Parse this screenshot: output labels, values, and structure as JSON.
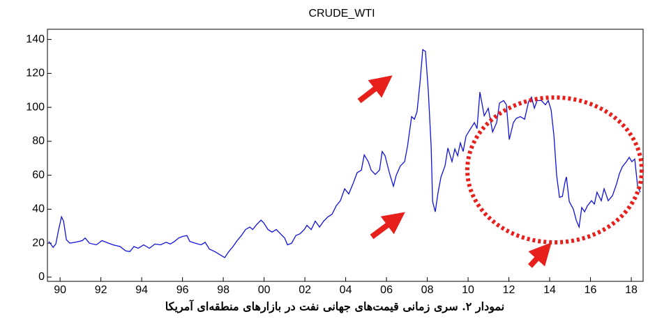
{
  "chart_data": {
    "type": "line",
    "title": "CRUDE_WTI",
    "caption": "نمودار ۲. سری زمانی قیمت‌های جهانی نفت در بازارهای منطقه‌ای آمریکا",
    "color": "#1010e0",
    "x": [
      1989.45,
      1989.66,
      1989.79,
      1989.93,
      1990.07,
      1990.17,
      1990.31,
      1990.48,
      1990.75,
      1991.09,
      1991.23,
      1991.44,
      1991.78,
      1992.05,
      1992.26,
      1992.6,
      1992.94,
      1993.21,
      1993.42,
      1993.62,
      1993.83,
      1994.1,
      1994.38,
      1994.65,
      1994.92,
      1995.2,
      1995.4,
      1995.61,
      1995.81,
      1996.02,
      1996.22,
      1996.36,
      1996.63,
      1996.91,
      1997.11,
      1997.32,
      1997.59,
      1997.86,
      1998.07,
      1998.27,
      1998.48,
      1998.68,
      1998.89,
      1999.09,
      1999.3,
      1999.44,
      1999.64,
      1999.85,
      1999.98,
      2000.19,
      2000.39,
      2000.6,
      2000.8,
      2001.01,
      2001.15,
      2001.35,
      2001.56,
      2001.76,
      2001.97,
      2002.1,
      2002.31,
      2002.51,
      2002.72,
      2002.92,
      2003.13,
      2003.33,
      2003.54,
      2003.74,
      2003.95,
      2004.15,
      2004.36,
      2004.56,
      2004.77,
      2004.91,
      2005.11,
      2005.25,
      2005.45,
      2005.66,
      2005.79,
      2005.93,
      2006.14,
      2006.34,
      2006.48,
      2006.68,
      2006.89,
      2007.03,
      2007.23,
      2007.37,
      2007.5,
      2007.64,
      2007.78,
      2007.91,
      2008.05,
      2008.19,
      2008.26,
      2008.39,
      2008.53,
      2008.67,
      2008.87,
      2009.01,
      2009.21,
      2009.35,
      2009.49,
      2009.62,
      2009.76,
      2009.9,
      2010.1,
      2010.31,
      2010.44,
      2010.58,
      2010.79,
      2010.99,
      2011.2,
      2011.4,
      2011.54,
      2011.74,
      2011.88,
      2012.02,
      2012.22,
      2012.36,
      2012.56,
      2012.77,
      2012.97,
      2013.11,
      2013.25,
      2013.38,
      2013.59,
      2013.79,
      2013.93,
      2014.07,
      2014.21,
      2014.34,
      2014.48,
      2014.62,
      2014.75,
      2014.82,
      2014.96,
      2015.16,
      2015.3,
      2015.44,
      2015.57,
      2015.71,
      2015.85,
      2016.05,
      2016.19,
      2016.32,
      2016.53,
      2016.67,
      2016.87,
      2017.08,
      2017.28,
      2017.42,
      2017.56,
      2017.76,
      2017.9,
      2018.03,
      2018.17,
      2018.31,
      2018.44
    ],
    "values": [
      21,
      17.5,
      19.5,
      28,
      35.5,
      33,
      22,
      20,
      20.5,
      21.5,
      23,
      20,
      19,
      21.5,
      20.5,
      19,
      18,
      15.5,
      15,
      18,
      17,
      19,
      17,
      19.5,
      19,
      20.5,
      19.5,
      21,
      23,
      24,
      24.5,
      21,
      20,
      19,
      20.5,
      16.5,
      15,
      13,
      11.5,
      15,
      18,
      21.5,
      24.5,
      28,
      29.5,
      28,
      31,
      33.5,
      32,
      28,
      26.5,
      28,
      25.5,
      23,
      19,
      20,
      24.5,
      25.5,
      28,
      30.5,
      28,
      33,
      29.5,
      33,
      35.5,
      37,
      42,
      45,
      52,
      49,
      55,
      61.5,
      63,
      72,
      68,
      63,
      60.5,
      63,
      74,
      71.5,
      61.5,
      53.5,
      60,
      65.5,
      68,
      77,
      94.5,
      93,
      97.5,
      114,
      134,
      133,
      110,
      77,
      44.5,
      38.5,
      50,
      59,
      65.5,
      76,
      68,
      75.5,
      71.5,
      79,
      74,
      83,
      87,
      91,
      87.5,
      109,
      95,
      99.5,
      85.5,
      91,
      102.5,
      104,
      101.5,
      81,
      91,
      93.5,
      94.5,
      93,
      103.5,
      106,
      99.5,
      104,
      104,
      101.5,
      104,
      98.5,
      83,
      60,
      47,
      47.5,
      56,
      59,
      44.5,
      40,
      33.5,
      29.5,
      41,
      38.5,
      42,
      45,
      43,
      50,
      45,
      52,
      45,
      48,
      55,
      61,
      65,
      68,
      70.5,
      68,
      69.5,
      53.5,
      50
    ],
    "xlim": [
      1989.38,
      2018.58
    ],
    "ylim": [
      -2.5,
      146
    ],
    "xticks": [
      {
        "value": 1990,
        "label": "90"
      },
      {
        "value": 1992,
        "label": "92"
      },
      {
        "value": 1994,
        "label": "94"
      },
      {
        "value": 1996,
        "label": "96"
      },
      {
        "value": 1998,
        "label": "98"
      },
      {
        "value": 2000,
        "label": "00"
      },
      {
        "value": 2002,
        "label": "02"
      },
      {
        "value": 2004,
        "label": "04"
      },
      {
        "value": 2006,
        "label": "06"
      },
      {
        "value": 2008,
        "label": "08"
      },
      {
        "value": 2010,
        "label": "10"
      },
      {
        "value": 2012,
        "label": "12"
      },
      {
        "value": 2014,
        "label": "14"
      },
      {
        "value": 2016,
        "label": "16"
      },
      {
        "value": 2018,
        "label": "18"
      }
    ],
    "yticks": [
      0,
      20,
      40,
      60,
      80,
      100,
      120,
      140
    ]
  }
}
